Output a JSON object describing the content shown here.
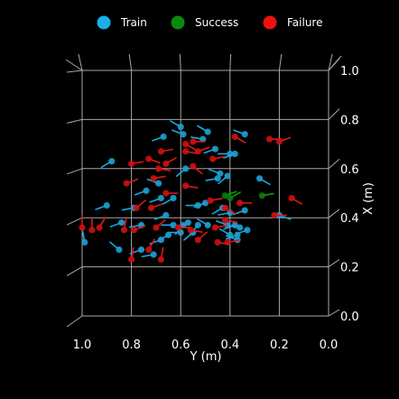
{
  "chart_data": {
    "type": "scatter",
    "title": "",
    "xlabel": "Y (m)",
    "ylabel": "X (m)",
    "x_ticks": [
      "1.0",
      "0.8",
      "0.6",
      "0.4",
      "0.2",
      "0.0"
    ],
    "y_ticks": [
      "0.0",
      "0.2",
      "0.4",
      "0.6",
      "0.8",
      "1.0"
    ],
    "xlim": [
      1.0,
      0.0
    ],
    "ylim": [
      0.0,
      1.0
    ],
    "x_inverted": true,
    "grid": true,
    "legend_position": "top",
    "legend": [
      {
        "name": "Train",
        "color": "#1ab0e6"
      },
      {
        "name": "Success",
        "color": "#0a8a0a"
      },
      {
        "name": "Failure",
        "color": "#ee1111"
      }
    ],
    "colors": {
      "train_marker": "#1f9fd0",
      "train_line": "#1aa7df",
      "success_marker": "#0a7a0a",
      "success_line": "#0aa00a",
      "failure_marker": "#cc1111",
      "failure_line": "#e01818"
    },
    "series": [
      {
        "name": "Train",
        "points": [
          {
            "x": 0.6,
            "y": 0.77,
            "dir": 150
          },
          {
            "x": 0.59,
            "y": 0.74,
            "dir": 160
          },
          {
            "x": 0.67,
            "y": 0.73,
            "dir": 200
          },
          {
            "x": 0.51,
            "y": 0.72,
            "dir": 170
          },
          {
            "x": 0.49,
            "y": 0.75,
            "dir": 150
          },
          {
            "x": 0.34,
            "y": 0.74,
            "dir": 160
          },
          {
            "x": 0.46,
            "y": 0.68,
            "dir": 200
          },
          {
            "x": 0.4,
            "y": 0.66,
            "dir": 180
          },
          {
            "x": 0.38,
            "y": 0.66,
            "dir": 200
          },
          {
            "x": 0.88,
            "y": 0.63,
            "dir": 210
          },
          {
            "x": 0.58,
            "y": 0.6,
            "dir": 220
          },
          {
            "x": 0.44,
            "y": 0.58,
            "dir": 160
          },
          {
            "x": 0.41,
            "y": 0.57,
            "dir": 220
          },
          {
            "x": 0.45,
            "y": 0.56,
            "dir": 190
          },
          {
            "x": 0.28,
            "y": 0.56,
            "dir": 330
          },
          {
            "x": 0.69,
            "y": 0.54,
            "dir": 160
          },
          {
            "x": 0.74,
            "y": 0.51,
            "dir": 200
          },
          {
            "x": 0.68,
            "y": 0.48,
            "dir": 200
          },
          {
            "x": 0.63,
            "y": 0.48,
            "dir": 210
          },
          {
            "x": 0.5,
            "y": 0.46,
            "dir": 200
          },
          {
            "x": 0.53,
            "y": 0.45,
            "dir": 180
          },
          {
            "x": 0.9,
            "y": 0.45,
            "dir": 200
          },
          {
            "x": 0.79,
            "y": 0.44,
            "dir": 190
          },
          {
            "x": 0.43,
            "y": 0.44,
            "dir": 210
          },
          {
            "x": 0.34,
            "y": 0.43,
            "dir": 200
          },
          {
            "x": 0.4,
            "y": 0.42,
            "dir": 190
          },
          {
            "x": 0.66,
            "y": 0.41,
            "dir": 200
          },
          {
            "x": 0.2,
            "y": 0.41,
            "dir": 340
          },
          {
            "x": 0.84,
            "y": 0.38,
            "dir": 200
          },
          {
            "x": 0.76,
            "y": 0.37,
            "dir": 190
          },
          {
            "x": 0.57,
            "y": 0.38,
            "dir": 210
          },
          {
            "x": 0.59,
            "y": 0.37,
            "dir": 230
          },
          {
            "x": 0.63,
            "y": 0.37,
            "dir": 180
          },
          {
            "x": 0.53,
            "y": 0.37,
            "dir": 230
          },
          {
            "x": 0.49,
            "y": 0.37,
            "dir": 150
          },
          {
            "x": 0.41,
            "y": 0.37,
            "dir": 160
          },
          {
            "x": 0.38,
            "y": 0.37,
            "dir": 200
          },
          {
            "x": 0.36,
            "y": 0.36,
            "dir": 170
          },
          {
            "x": 0.33,
            "y": 0.35,
            "dir": 200
          },
          {
            "x": 0.6,
            "y": 0.34,
            "dir": 180
          },
          {
            "x": 0.55,
            "y": 0.34,
            "dir": 220
          },
          {
            "x": 0.65,
            "y": 0.33,
            "dir": 210
          },
          {
            "x": 0.68,
            "y": 0.31,
            "dir": 200
          },
          {
            "x": 0.4,
            "y": 0.33,
            "dir": 150
          },
          {
            "x": 0.37,
            "y": 0.33,
            "dir": 200
          },
          {
            "x": 0.99,
            "y": 0.3,
            "dir": 100
          },
          {
            "x": 0.76,
            "y": 0.27,
            "dir": 200
          },
          {
            "x": 0.85,
            "y": 0.27,
            "dir": 140
          },
          {
            "x": 0.71,
            "y": 0.25,
            "dir": 190
          },
          {
            "x": 0.37,
            "y": 0.31,
            "dir": 160
          }
        ]
      },
      {
        "name": "Success",
        "points": [
          {
            "x": 0.4,
            "y": 0.48,
            "dir": 30
          },
          {
            "x": 0.42,
            "y": 0.49,
            "dir": 20
          },
          {
            "x": 0.27,
            "y": 0.49,
            "dir": 10
          }
        ]
      },
      {
        "name": "Failure",
        "points": [
          {
            "x": 0.55,
            "y": 0.71,
            "dir": 0
          },
          {
            "x": 0.58,
            "y": 0.7,
            "dir": 330
          },
          {
            "x": 0.2,
            "y": 0.71,
            "dir": 20
          },
          {
            "x": 0.24,
            "y": 0.72,
            "dir": 0
          },
          {
            "x": 0.38,
            "y": 0.73,
            "dir": 330
          },
          {
            "x": 0.68,
            "y": 0.67,
            "dir": 10
          },
          {
            "x": 0.58,
            "y": 0.67,
            "dir": 350
          },
          {
            "x": 0.53,
            "y": 0.67,
            "dir": 20
          },
          {
            "x": 0.47,
            "y": 0.64,
            "dir": 10
          },
          {
            "x": 0.73,
            "y": 0.64,
            "dir": 340
          },
          {
            "x": 0.66,
            "y": 0.62,
            "dir": 30
          },
          {
            "x": 0.69,
            "y": 0.6,
            "dir": 350
          },
          {
            "x": 0.55,
            "y": 0.61,
            "dir": 320
          },
          {
            "x": 0.8,
            "y": 0.62,
            "dir": 10
          },
          {
            "x": 0.71,
            "y": 0.56,
            "dir": 10
          },
          {
            "x": 0.82,
            "y": 0.54,
            "dir": 20
          },
          {
            "x": 0.58,
            "y": 0.53,
            "dir": 350
          },
          {
            "x": 0.66,
            "y": 0.5,
            "dir": 0
          },
          {
            "x": 0.15,
            "y": 0.48,
            "dir": 330
          },
          {
            "x": 0.48,
            "y": 0.47,
            "dir": 10
          },
          {
            "x": 0.42,
            "y": 0.44,
            "dir": 330
          },
          {
            "x": 0.78,
            "y": 0.44,
            "dir": 40
          },
          {
            "x": 0.72,
            "y": 0.44,
            "dir": 20
          },
          {
            "x": 0.36,
            "y": 0.46,
            "dir": 0
          },
          {
            "x": 0.42,
            "y": 0.39,
            "dir": 350
          },
          {
            "x": 0.22,
            "y": 0.41,
            "dir": 0
          },
          {
            "x": 1.0,
            "y": 0.36,
            "dir": 90
          },
          {
            "x": 0.96,
            "y": 0.35,
            "dir": 90
          },
          {
            "x": 0.93,
            "y": 0.36,
            "dir": 60
          },
          {
            "x": 0.83,
            "y": 0.35,
            "dir": 80
          },
          {
            "x": 0.79,
            "y": 0.35,
            "dir": 20
          },
          {
            "x": 0.7,
            "y": 0.36,
            "dir": 40
          },
          {
            "x": 0.61,
            "y": 0.36,
            "dir": 0
          },
          {
            "x": 0.56,
            "y": 0.35,
            "dir": 350
          },
          {
            "x": 0.46,
            "y": 0.36,
            "dir": 10
          },
          {
            "x": 0.53,
            "y": 0.31,
            "dir": 40
          },
          {
            "x": 0.45,
            "y": 0.3,
            "dir": 350
          },
          {
            "x": 0.41,
            "y": 0.3,
            "dir": 10
          },
          {
            "x": 0.73,
            "y": 0.27,
            "dir": 60
          },
          {
            "x": 0.8,
            "y": 0.23,
            "dir": 80
          },
          {
            "x": 0.68,
            "y": 0.23,
            "dir": 80
          }
        ]
      }
    ]
  }
}
